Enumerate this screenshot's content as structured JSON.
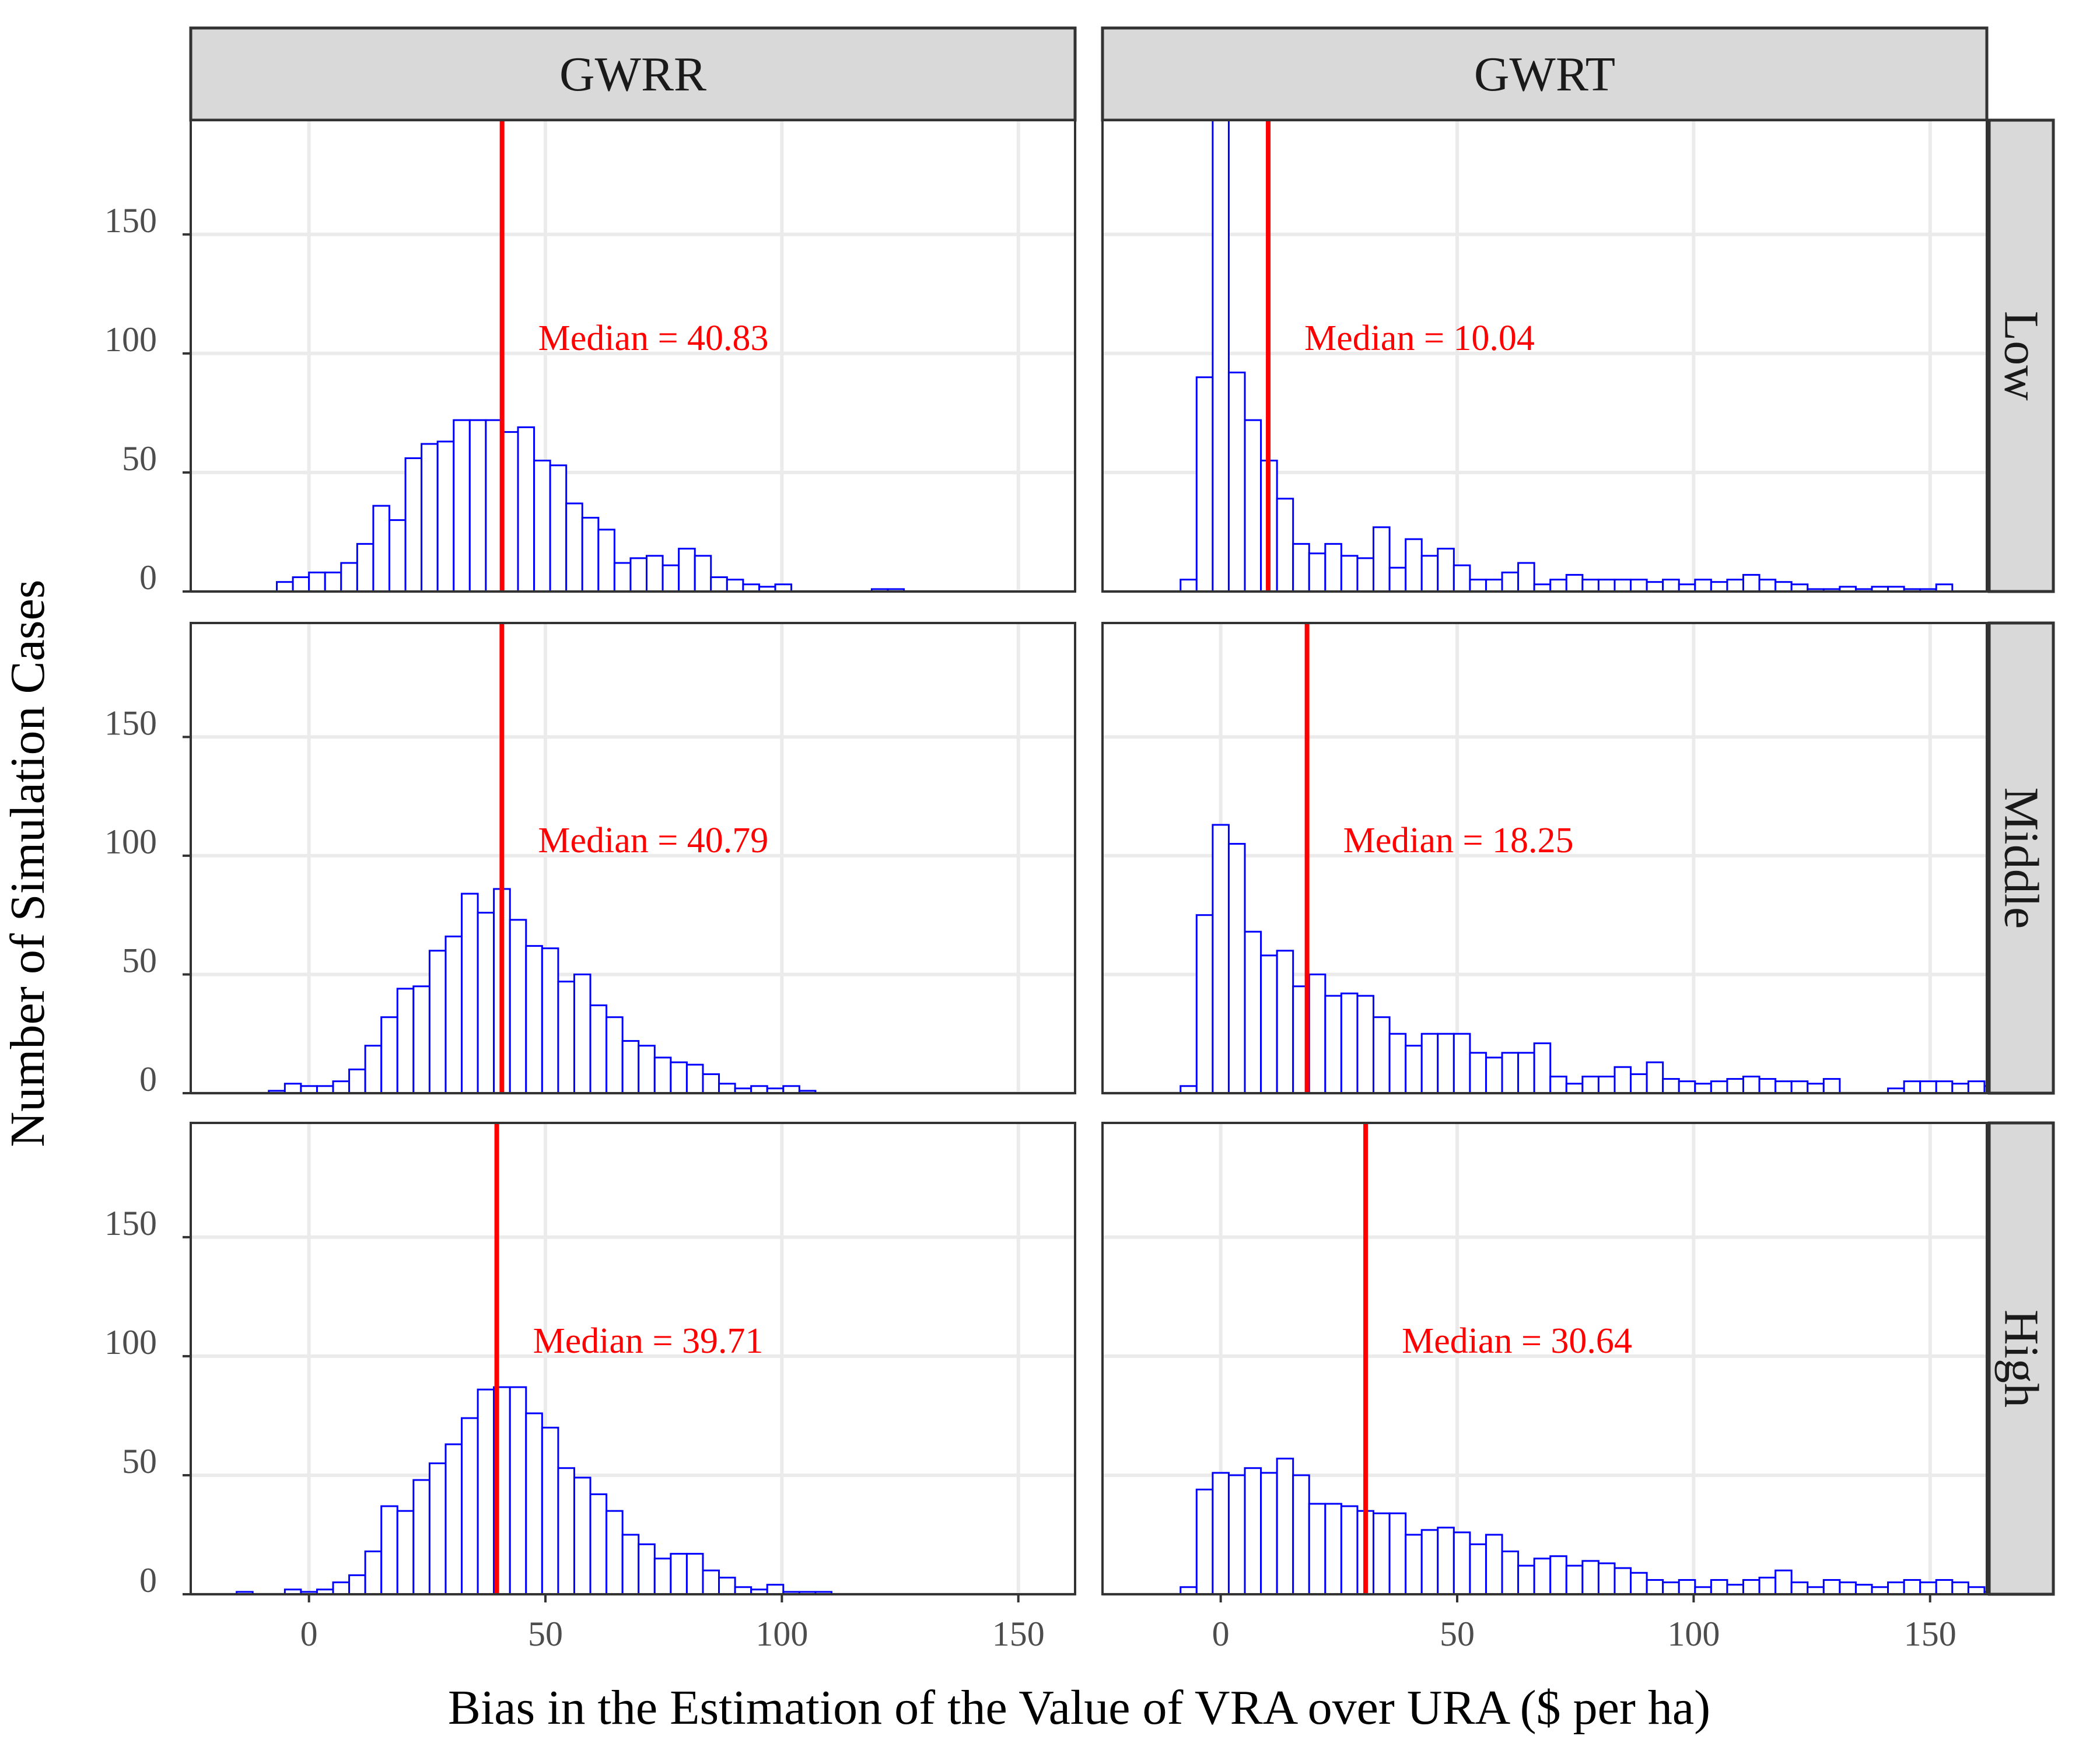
{
  "chart_data": {
    "type": "bar",
    "subtype": "faceted-histogram",
    "xlabel": "Bias in the Estimation of the Value of VRA over URA ($ per ha)",
    "ylabel": "Number of Simulation Cases",
    "xlim": [
      -25,
      162
    ],
    "ylim": [
      0,
      198
    ],
    "x_ticks": [
      0,
      50,
      100,
      150
    ],
    "y_ticks": [
      0,
      50,
      100,
      150
    ],
    "bin_width": 3.4,
    "grid": true,
    "columns": [
      "GWRR",
      "GWRT"
    ],
    "rows": [
      "Low",
      "Middle",
      "High"
    ],
    "colors": {
      "bar_outline": "#0000ff",
      "bar_fill": "#ffffff",
      "median": "#ff0000",
      "strip": "#d9d9d9"
    },
    "panels": [
      {
        "column": "GWRR",
        "row": "Low",
        "median": 40.83,
        "median_label": "Median = 40.83",
        "bin_start": -6.8,
        "counts": [
          4,
          6,
          8,
          8,
          12,
          20,
          36,
          30,
          56,
          62,
          63,
          72,
          72,
          72,
          67,
          69,
          55,
          53,
          37,
          31,
          26,
          12,
          14,
          15,
          11,
          18,
          15,
          6,
          5,
          3,
          2,
          3,
          0,
          0,
          0,
          0,
          0,
          1,
          1
        ]
      },
      {
        "column": "GWRT",
        "row": "Low",
        "median": 10.04,
        "median_label": "Median = 10.04",
        "bin_start": -8.5,
        "counts": [
          5,
          90,
          198,
          92,
          72,
          55,
          39,
          20,
          16,
          20,
          15,
          14,
          27,
          10,
          22,
          15,
          18,
          11,
          5,
          5,
          8,
          12,
          3,
          5,
          7,
          5,
          5,
          5,
          5,
          4,
          5,
          3,
          5,
          4,
          5,
          7,
          5,
          4,
          3,
          1,
          1,
          2,
          1,
          2,
          2,
          1,
          1,
          3
        ]
      },
      {
        "column": "GWRR",
        "row": "Middle",
        "median": 40.79,
        "median_label": "Median = 40.79",
        "bin_start": -8.5,
        "counts": [
          1,
          4,
          3,
          3,
          5,
          10,
          20,
          32,
          44,
          45,
          60,
          66,
          84,
          76,
          86,
          73,
          62,
          61,
          47,
          50,
          37,
          32,
          22,
          20,
          15,
          13,
          12,
          8,
          4,
          2,
          3,
          2,
          3,
          1
        ]
      },
      {
        "column": "GWRT",
        "row": "Middle",
        "median": 18.25,
        "median_label": "Median = 18.25",
        "bin_start": -8.5,
        "counts": [
          3,
          75,
          113,
          105,
          68,
          58,
          60,
          45,
          50,
          41,
          42,
          41,
          32,
          25,
          20,
          25,
          25,
          25,
          17,
          15,
          17,
          17,
          21,
          7,
          4,
          7,
          7,
          11,
          8,
          13,
          6,
          5,
          4,
          5,
          6,
          7,
          6,
          5,
          5,
          4,
          6,
          0,
          0,
          0,
          2,
          5,
          5,
          5,
          4,
          5,
          3
        ]
      },
      {
        "column": "GWRR",
        "row": "High",
        "median": 39.71,
        "median_label": "Median = 39.71",
        "bin_start": -15.3,
        "counts": [
          1,
          0,
          0,
          2,
          1,
          2,
          5,
          8,
          18,
          37,
          35,
          48,
          55,
          63,
          74,
          86,
          87,
          87,
          76,
          70,
          53,
          49,
          42,
          35,
          25,
          21,
          15,
          17,
          17,
          10,
          7,
          3,
          2,
          4,
          1,
          1,
          1
        ]
      },
      {
        "column": "GWRT",
        "row": "High",
        "median": 30.64,
        "median_label": "Median = 30.64",
        "bin_start": -8.5,
        "counts": [
          3,
          44,
          51,
          50,
          53,
          51,
          57,
          50,
          38,
          38,
          37,
          35,
          34,
          34,
          25,
          27,
          28,
          26,
          21,
          25,
          18,
          12,
          15,
          16,
          12,
          14,
          13,
          11,
          9,
          6,
          5,
          6,
          3,
          6,
          4,
          6,
          7,
          10,
          5,
          3,
          6,
          5,
          4,
          3,
          5,
          6,
          5,
          6,
          5,
          3,
          1,
          2,
          1,
          1,
          3
        ]
      }
    ]
  }
}
